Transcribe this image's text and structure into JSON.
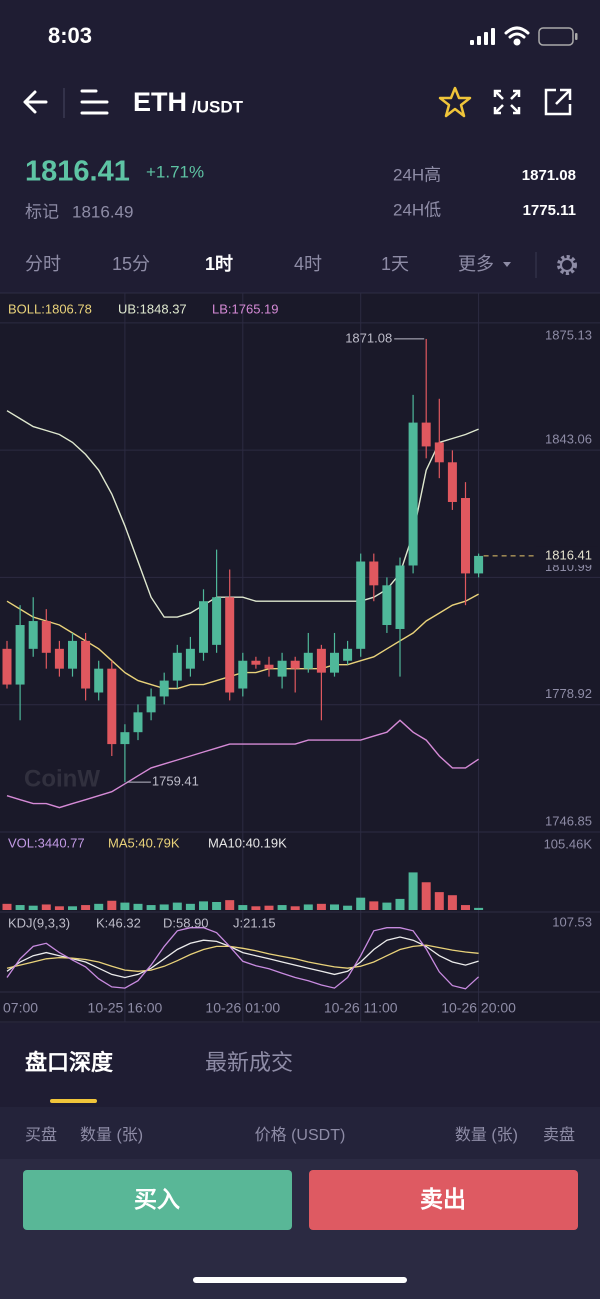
{
  "status_bar": {
    "time": "8:03"
  },
  "header": {
    "base": "ETH",
    "quote": "/USDT"
  },
  "ticker": {
    "price": "1816.41",
    "change": "+1.71%",
    "mark_label": "标记",
    "mark_price": "1816.49",
    "high_label": "24H高",
    "high": "1871.08",
    "low_label": "24H低",
    "low": "1775.11"
  },
  "intervals": [
    "分时",
    "15分",
    "1时",
    "4时",
    "1天",
    "更多"
  ],
  "chart_data": {
    "type": "candlestick",
    "watermark": "CoinW",
    "up_color": "#4fb89a",
    "down_color": "#e0585f",
    "categories": [
      "07:00",
      null,
      null,
      null,
      null,
      null,
      null,
      null,
      null,
      "10-25 16:00",
      null,
      null,
      null,
      null,
      null,
      null,
      null,
      null,
      "10-26 01:00",
      null,
      null,
      null,
      null,
      null,
      null,
      null,
      null,
      "10-26 11:00",
      null,
      null,
      null,
      null,
      null,
      null,
      null,
      null,
      "10-26 20:00"
    ],
    "open": [
      1793,
      1784,
      1793,
      1800,
      1793,
      1788,
      1795,
      1782,
      1788,
      1769,
      1772,
      1777,
      1781,
      1785,
      1788,
      1792,
      1794,
      1806,
      1783,
      1790,
      1789,
      1786,
      1790,
      1788,
      1793,
      1787,
      1790,
      1793,
      1815,
      1799,
      1798,
      1814,
      1850,
      1845,
      1840,
      1831,
      1812
    ],
    "close": [
      1784,
      1799,
      1800,
      1792,
      1788,
      1795,
      1783,
      1788,
      1769,
      1772,
      1777,
      1781,
      1785,
      1792,
      1793,
      1805,
      1806,
      1782,
      1790,
      1789,
      1788,
      1790,
      1788,
      1792,
      1787,
      1792,
      1793,
      1815,
      1809,
      1809,
      1814,
      1850,
      1844,
      1840,
      1830,
      1812,
      1816.41
    ],
    "high": [
      1795,
      1804,
      1806,
      1803,
      1795,
      1797,
      1797,
      1790,
      1790,
      1774,
      1779,
      1783,
      1787,
      1794,
      1796,
      1808,
      1818,
      1813,
      1792,
      1791,
      1791,
      1792,
      1791,
      1797,
      1794,
      1797,
      1795,
      1817,
      1817,
      1811,
      1816,
      1857,
      1871.08,
      1856,
      1843,
      1835,
      1817
    ],
    "low": [
      1783,
      1775,
      1791,
      1788,
      1786,
      1786,
      1780,
      1780,
      1766,
      1759.41,
      1770,
      1775,
      1779,
      1783,
      1786,
      1790,
      1792,
      1780,
      1781,
      1788,
      1786,
      1783,
      1782,
      1787,
      1775,
      1786,
      1789,
      1791,
      1805,
      1797,
      1786,
      1812,
      1841,
      1836,
      1828,
      1804,
      1811
    ],
    "series": [
      {
        "name": "BOLL:1806.78",
        "color": "#e9d27a",
        "values": [
          1805,
          1803,
          1801,
          1800,
          1799,
          1797,
          1795,
          1793,
          1790,
          1787,
          1785,
          1784,
          1783,
          1783,
          1784,
          1784,
          1785,
          1786,
          1787,
          1787,
          1788,
          1788,
          1788,
          1788,
          1788,
          1789,
          1789,
          1790,
          1791,
          1793,
          1795,
          1797,
          1800,
          1802,
          1804,
          1805,
          1806.78
        ]
      },
      {
        "name": "UB:1848.37",
        "color": "#dfe8cf",
        "values": [
          1853,
          1851,
          1849,
          1848,
          1847,
          1845,
          1842,
          1838,
          1832,
          1824,
          1815,
          1806,
          1801,
          1801,
          1802,
          1804,
          1806,
          1806,
          1806,
          1805,
          1805,
          1805,
          1805,
          1805,
          1805,
          1805,
          1805,
          1805,
          1806,
          1808,
          1812,
          1822,
          1838,
          1845,
          1846,
          1847,
          1848.37
        ]
      },
      {
        "name": "LB:1765.19",
        "color": "#d58ad6",
        "values": [
          1756,
          1755,
          1754,
          1754,
          1753,
          1754,
          1755,
          1756,
          1757,
          1759,
          1761,
          1763,
          1764,
          1765,
          1766,
          1767,
          1768,
          1769,
          1769,
          1769,
          1769,
          1769,
          1769,
          1770,
          1770,
          1770,
          1770,
          1770,
          1771,
          1772,
          1775,
          1772,
          1770,
          1766,
          1763,
          1763,
          1765.19
        ]
      }
    ],
    "ylim": [
      1746.85,
      1882.15
    ],
    "yticks": [
      1875.13,
      1843.06,
      1810.99,
      1778.92,
      1746.85
    ],
    "last_color": "#e7c66b",
    "volume": {
      "name": "VOL:3440.77",
      "color": "#c39be6",
      "values": [
        10,
        8,
        7,
        9,
        6,
        6,
        8,
        10,
        15,
        12,
        10,
        8,
        9,
        12,
        10,
        14,
        13,
        16,
        8,
        6,
        7,
        8,
        6,
        9,
        10,
        9,
        7,
        20,
        14,
        12,
        18,
        61,
        45,
        29,
        24,
        8,
        3.44
      ],
      "legend": [
        {
          "name": "MA5:40.79K",
          "color": "#e9d27a"
        },
        {
          "name": "MA10:40.19K",
          "color": "#e6e6e6"
        }
      ],
      "ylim": [
        0,
        105.46
      ],
      "yticks": [
        {
          "value": 105.46,
          "label": "105.46K"
        }
      ]
    },
    "kdj": {
      "name": "KDJ(9,3,3)",
      "series": [
        {
          "name": "K:46.32",
          "color": "#ececec",
          "values": [
            30,
            45,
            55,
            60,
            55,
            50,
            45,
            35,
            25,
            20,
            25,
            35,
            50,
            65,
            75,
            80,
            78,
            70,
            60,
            55,
            50,
            45,
            40,
            35,
            30,
            25,
            30,
            45,
            65,
            80,
            85,
            80,
            70,
            55,
            45,
            40,
            46.32
          ]
        },
        {
          "name": "D:58.90",
          "color": "#e9d27a",
          "values": [
            35,
            40,
            45,
            50,
            52,
            51,
            49,
            45,
            38,
            32,
            30,
            32,
            38,
            47,
            57,
            65,
            70,
            70,
            67,
            63,
            58,
            54,
            50,
            45,
            41,
            37,
            35,
            38,
            45,
            55,
            65,
            70,
            72,
            68,
            64,
            61,
            58.9
          ]
        },
        {
          "name": "J:21.15",
          "color": "#c88be0",
          "values": [
            20,
            50,
            70,
            75,
            60,
            48,
            37,
            18,
            5,
            3,
            15,
            40,
            70,
            95,
            100,
            100,
            92,
            70,
            46,
            39,
            34,
            27,
            20,
            15,
            8,
            3,
            20,
            55,
            95,
            100,
            100,
            95,
            66,
            29,
            7,
            2,
            21.15
          ]
        }
      ],
      "ylim": [
        0,
        107.53
      ],
      "yticks": [
        107.53
      ]
    }
  },
  "depth": {
    "tabs": [
      "盘口深度",
      "最新成交"
    ],
    "columns": [
      "买盘",
      "数量 (张)",
      "价格 (USDT)",
      "数量 (张)",
      "卖盘"
    ]
  },
  "actions": {
    "buy": "买入",
    "sell": "卖出"
  }
}
